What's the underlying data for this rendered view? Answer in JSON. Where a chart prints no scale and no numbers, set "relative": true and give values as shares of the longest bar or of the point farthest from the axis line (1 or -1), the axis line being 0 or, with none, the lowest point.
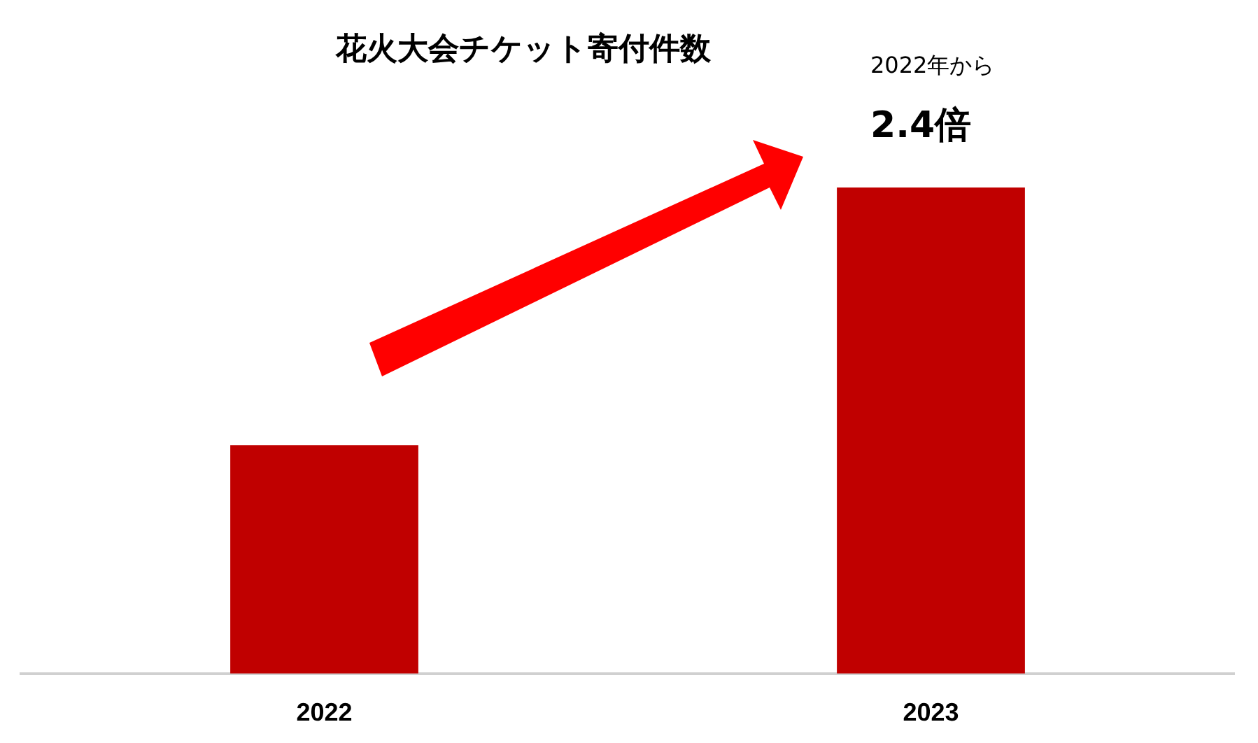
{
  "chart_data": {
    "type": "bar",
    "title": "花火大会チケット寄付件数",
    "categories": [
      "2022",
      "2023"
    ],
    "values": [
      0.47,
      1
    ],
    "color": "#c00000",
    "relative": true,
    "grid": false,
    "legend": false,
    "annotations": [
      "2022年から",
      "2.4倍"
    ]
  }
}
